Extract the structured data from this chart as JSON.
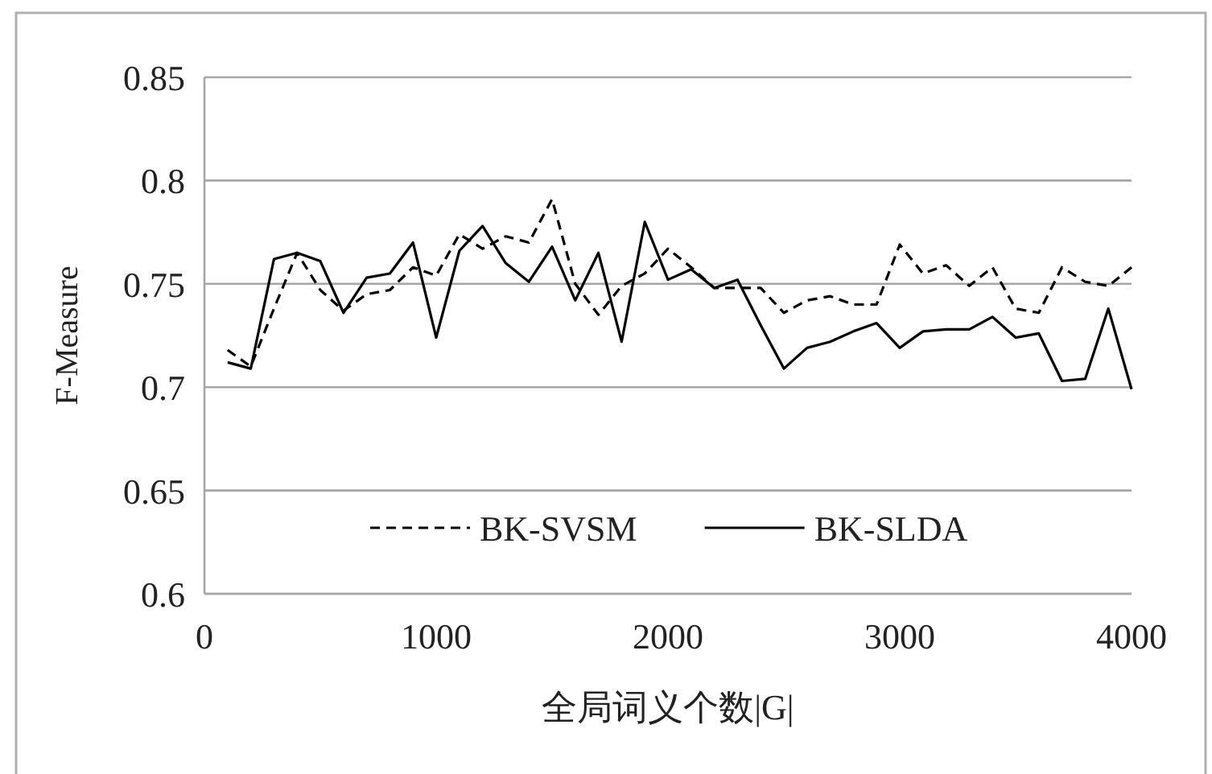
{
  "chart_data": {
    "type": "line",
    "xlabel": "全局词义个数|G|",
    "ylabel": "F-Measure",
    "x": [
      100,
      200,
      300,
      400,
      500,
      600,
      700,
      800,
      900,
      1000,
      1100,
      1200,
      1300,
      1400,
      1500,
      1600,
      1700,
      1800,
      1900,
      2000,
      2100,
      2200,
      2300,
      2400,
      2500,
      2600,
      2700,
      2800,
      2900,
      3000,
      3100,
      3200,
      3300,
      3400,
      3500,
      3600,
      3700,
      3800,
      3900,
      4000
    ],
    "series": [
      {
        "name": "BK-SVSM",
        "color": "#000000",
        "line_style": "dashed",
        "values": [
          0.718,
          0.71,
          0.738,
          0.765,
          0.747,
          0.737,
          0.745,
          0.747,
          0.758,
          0.754,
          0.774,
          0.767,
          0.773,
          0.77,
          0.791,
          0.75,
          0.735,
          0.749,
          0.755,
          0.767,
          0.758,
          0.748,
          0.748,
          0.748,
          0.736,
          0.742,
          0.744,
          0.74,
          0.74,
          0.769,
          0.755,
          0.759,
          0.749,
          0.758,
          0.738,
          0.736,
          0.758,
          0.751,
          0.749,
          0.758
        ]
      },
      {
        "name": "BK-SLDA",
        "color": "#000000",
        "line_style": "solid",
        "values": [
          0.712,
          0.709,
          0.762,
          0.765,
          0.761,
          0.736,
          0.753,
          0.755,
          0.77,
          0.724,
          0.766,
          0.778,
          0.76,
          0.751,
          0.768,
          0.742,
          0.765,
          0.722,
          0.78,
          0.752,
          0.757,
          0.748,
          0.752,
          0.73,
          0.709,
          0.719,
          0.722,
          0.727,
          0.731,
          0.719,
          0.727,
          0.728,
          0.728,
          0.734,
          0.724,
          0.726,
          0.703,
          0.704,
          0.738,
          0.699
        ]
      }
    ],
    "xlim": [
      0,
      4000
    ],
    "xticks": [
      0,
      1000,
      2000,
      3000,
      4000
    ],
    "ylim": [
      0.6,
      0.85
    ],
    "yticks": [
      0.6,
      0.65,
      0.7,
      0.75,
      0.8,
      0.85
    ],
    "grid": "y",
    "legend": "bottom"
  }
}
